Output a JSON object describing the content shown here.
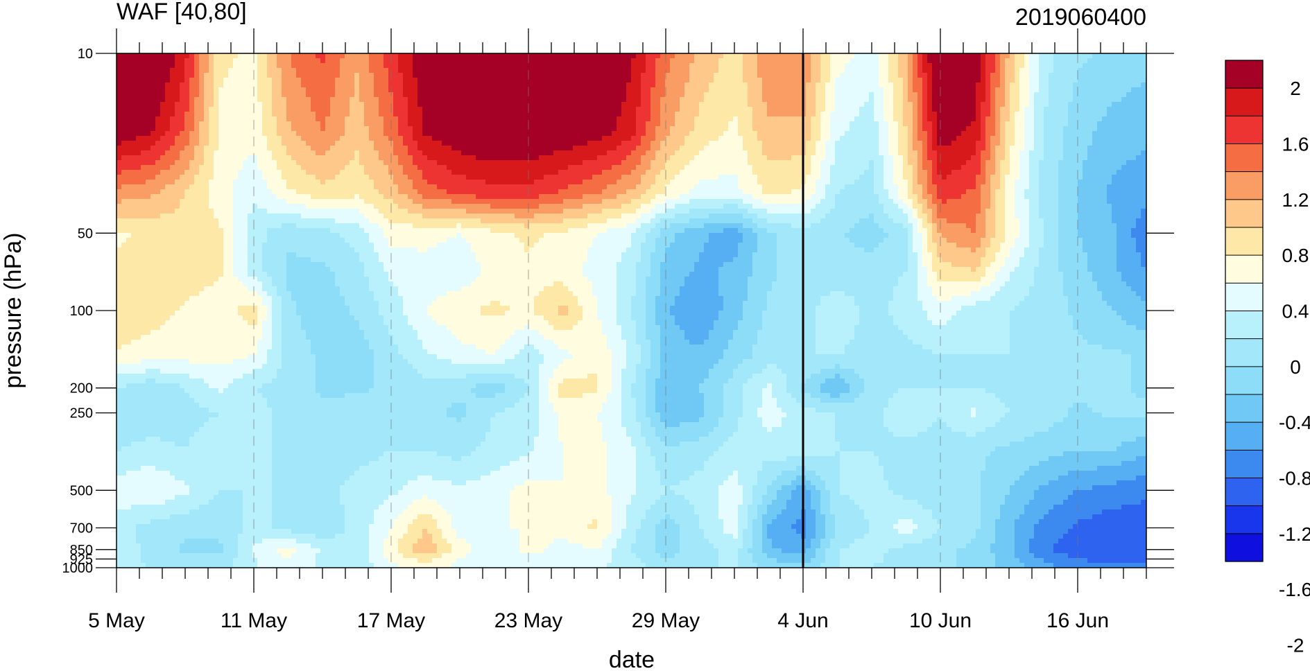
{
  "chart_data": {
    "type": "heatmap",
    "title_left": "WAF [40,80]",
    "title_right": "2019060400",
    "xlabel": "date",
    "ylabel": "pressure (hPa)",
    "x_tick_labels": [
      "5 May",
      "11 May",
      "17 May",
      "23 May",
      "29 May",
      "4 Jun",
      "10 Jun",
      "16 Jun"
    ],
    "x_days": [
      0,
      6,
      12,
      18,
      24,
      30,
      36,
      42
    ],
    "x_max_day": 45,
    "y_scale": "log",
    "y_ticks": [
      10,
      50,
      100,
      200,
      250,
      500,
      700,
      850,
      925,
      1000
    ],
    "y_tick_labels": [
      "10",
      "50",
      "100",
      "200",
      "250",
      "500",
      "700",
      "850",
      "925",
      "1000"
    ],
    "ylim": [
      1000,
      10
    ],
    "vertical_marker_day": 30,
    "colorbar": {
      "labels": [
        "2",
        "1.6",
        "1.2",
        "0.8",
        "0.4",
        "0",
        "-0.4",
        "-0.8",
        "-1.2",
        "-1.6",
        "-2"
      ],
      "colors": [
        "#a50026",
        "#d7191c",
        "#ee3333",
        "#f46d43",
        "#f99d65",
        "#fdc88a",
        "#fee8a8",
        "#fffce0",
        "#e4fbff",
        "#b8f1fb",
        "#a2e8fa",
        "#8ddcf8",
        "#70c9f5",
        "#56aff2",
        "#3c8af0",
        "#2d63ee",
        "#1a36ec",
        "#1010de"
      ]
    },
    "field_days": [
      0,
      1.5,
      3,
      4.5,
      6,
      7.5,
      9,
      10.5,
      12,
      13.5,
      15,
      16.5,
      18,
      19.5,
      21,
      22.5,
      24,
      25.5,
      27,
      28.5,
      30,
      31.5,
      33,
      34.5,
      36,
      37.5,
      39,
      40.5,
      42,
      43.5,
      45
    ],
    "field_pressures": [
      10,
      20,
      35,
      50,
      70,
      100,
      150,
      200,
      250,
      350,
      500,
      700,
      850,
      1000
    ],
    "field_values": [
      [
        2.5,
        2.4,
        1.8,
        0.5,
        0.4,
        1.2,
        1.5,
        1.0,
        1.6,
        2.2,
        2.5,
        2.6,
        2.6,
        2.5,
        2.4,
        2.0,
        1.3,
        0.9,
        0.6,
        1.2,
        1.2,
        0.3,
        0.1,
        0.9,
        2.5,
        2.2,
        0.9,
        -0.2,
        -0.5,
        -0.6,
        -0.7
      ],
      [
        2.2,
        2.0,
        1.4,
        0.4,
        0.3,
        0.9,
        1.2,
        0.8,
        1.3,
        2.0,
        2.2,
        2.3,
        2.3,
        2.2,
        2.1,
        1.8,
        1.0,
        0.6,
        0.4,
        0.9,
        0.9,
        0.0,
        -0.2,
        0.7,
        2.1,
        1.9,
        0.6,
        -0.3,
        -0.7,
        -0.9,
        -1.0
      ],
      [
        1.1,
        1.0,
        0.7,
        0.3,
        0.0,
        0.4,
        0.6,
        0.5,
        0.8,
        1.3,
        1.5,
        1.6,
        1.6,
        1.4,
        1.2,
        0.9,
        0.4,
        0.1,
        0.1,
        0.5,
        0.4,
        -0.3,
        -0.4,
        0.4,
        1.6,
        1.4,
        0.3,
        -0.4,
        -0.8,
        -1.1,
        -1.2
      ],
      [
        0.4,
        0.5,
        0.6,
        0.5,
        -0.2,
        -0.5,
        -0.4,
        -0.2,
        0.3,
        0.3,
        0.2,
        0.4,
        0.5,
        0.4,
        0.2,
        0.0,
        -0.7,
        -1.0,
        -1.2,
        -0.6,
        -0.4,
        -0.5,
        -0.7,
        -0.4,
        1.0,
        1.2,
        0.4,
        -0.3,
        -0.8,
        -1.0,
        -1.5
      ],
      [
        0.5,
        0.6,
        0.6,
        0.5,
        -0.2,
        -0.6,
        -0.6,
        -0.4,
        0.0,
        0.1,
        0.0,
        0.3,
        0.4,
        0.3,
        0.1,
        -0.2,
        -0.9,
        -1.1,
        -1.0,
        -0.6,
        -0.4,
        -0.5,
        -0.4,
        -0.3,
        0.6,
        0.7,
        0.0,
        -0.4,
        -0.7,
        -1.0,
        -1.3
      ],
      [
        0.7,
        0.6,
        0.4,
        0.3,
        0.6,
        -0.5,
        -0.7,
        -0.5,
        -0.2,
        0.2,
        0.4,
        0.5,
        0.4,
        0.8,
        0.2,
        -0.3,
        -1.0,
        -1.3,
        -0.9,
        -0.5,
        -0.4,
        -0.1,
        -0.4,
        -0.2,
        0.1,
        -0.2,
        -0.3,
        -0.4,
        -0.6,
        -0.8,
        -1.0
      ],
      [
        0.4,
        0.3,
        0.3,
        0.3,
        0.2,
        -0.4,
        -0.6,
        -0.7,
        -0.4,
        -0.1,
        0.1,
        0.2,
        -0.2,
        0.1,
        0.4,
        -0.1,
        -0.9,
        -1.0,
        -0.7,
        -0.4,
        -0.3,
        -0.3,
        -0.4,
        -0.4,
        -0.3,
        -0.3,
        -0.3,
        -0.4,
        -0.5,
        -0.5,
        -0.6
      ],
      [
        -0.3,
        -0.5,
        -0.3,
        0.0,
        -0.3,
        -0.4,
        -0.6,
        -0.6,
        -0.5,
        -0.4,
        -0.5,
        -0.7,
        -0.3,
        0.6,
        0.5,
        -0.3,
        -1.0,
        -0.8,
        -0.4,
        0.0,
        -0.6,
        -1.1,
        -0.4,
        -0.3,
        -0.3,
        -0.3,
        -0.4,
        -0.5,
        -0.5,
        -0.5,
        -0.6
      ],
      [
        -0.5,
        -0.5,
        -0.4,
        -0.3,
        -0.2,
        -0.4,
        -0.5,
        -0.4,
        -0.4,
        -0.5,
        -0.6,
        -0.3,
        -0.2,
        0.3,
        0.2,
        -0.2,
        -1.0,
        -0.9,
        -0.4,
        0.1,
        -0.2,
        -0.3,
        -0.4,
        -0.1,
        -0.3,
        0.0,
        -0.3,
        -0.4,
        -0.6,
        -0.5,
        -0.5
      ],
      [
        -0.3,
        -0.2,
        -0.3,
        -0.1,
        -0.2,
        -0.4,
        -0.5,
        -0.4,
        -0.3,
        -0.3,
        -0.4,
        -0.2,
        -0.1,
        0.2,
        0.3,
        0.0,
        -0.5,
        -0.4,
        -0.2,
        -0.2,
        -0.1,
        -0.3,
        -0.3,
        -0.4,
        -0.4,
        -0.5,
        -0.6,
        -0.7,
        -0.8,
        -0.8,
        -1.0
      ],
      [
        0.1,
        0.2,
        0.0,
        -0.3,
        -0.3,
        -0.3,
        -0.4,
        -0.2,
        -0.1,
        0.1,
        0.0,
        0.1,
        0.3,
        0.2,
        0.3,
        0.0,
        -0.3,
        -0.2,
        0.1,
        -0.6,
        -1.2,
        -0.3,
        -0.2,
        -0.4,
        -0.5,
        -0.5,
        -0.8,
        -1.1,
        -1.3,
        -1.4,
        -1.5
      ],
      [
        -0.2,
        -0.4,
        -0.5,
        -0.5,
        -0.2,
        -0.4,
        -0.5,
        -0.2,
        0.2,
        0.7,
        0.1,
        0.2,
        0.2,
        0.3,
        0.5,
        -0.2,
        -0.7,
        -0.3,
        0.1,
        -1.1,
        -1.4,
        -0.5,
        -0.3,
        0.1,
        -0.3,
        -0.5,
        -1.0,
        -1.4,
        -1.6,
        -1.7,
        -1.7
      ],
      [
        -0.1,
        -0.4,
        -0.6,
        -0.6,
        0.0,
        0.3,
        -0.1,
        -0.3,
        0.4,
        0.9,
        0.3,
        0.0,
        0.3,
        0.1,
        0.2,
        -0.3,
        -0.7,
        -0.4,
        -0.2,
        -1.0,
        -1.2,
        -0.3,
        -0.2,
        -0.4,
        -0.5,
        -0.6,
        -1.0,
        -1.5,
        -1.7,
        -1.8,
        -1.8
      ],
      [
        -0.2,
        -0.3,
        -0.4,
        -0.4,
        -0.1,
        0.1,
        -0.1,
        -0.2,
        0.1,
        0.3,
        0.1,
        0.0,
        0.0,
        0.0,
        0.0,
        -0.2,
        -0.4,
        -0.3,
        -0.3,
        -0.6,
        -0.7,
        -0.3,
        -0.3,
        -0.4,
        -0.5,
        -0.6,
        -0.9,
        -1.2,
        -1.4,
        -1.5,
        -1.5
      ]
    ]
  }
}
